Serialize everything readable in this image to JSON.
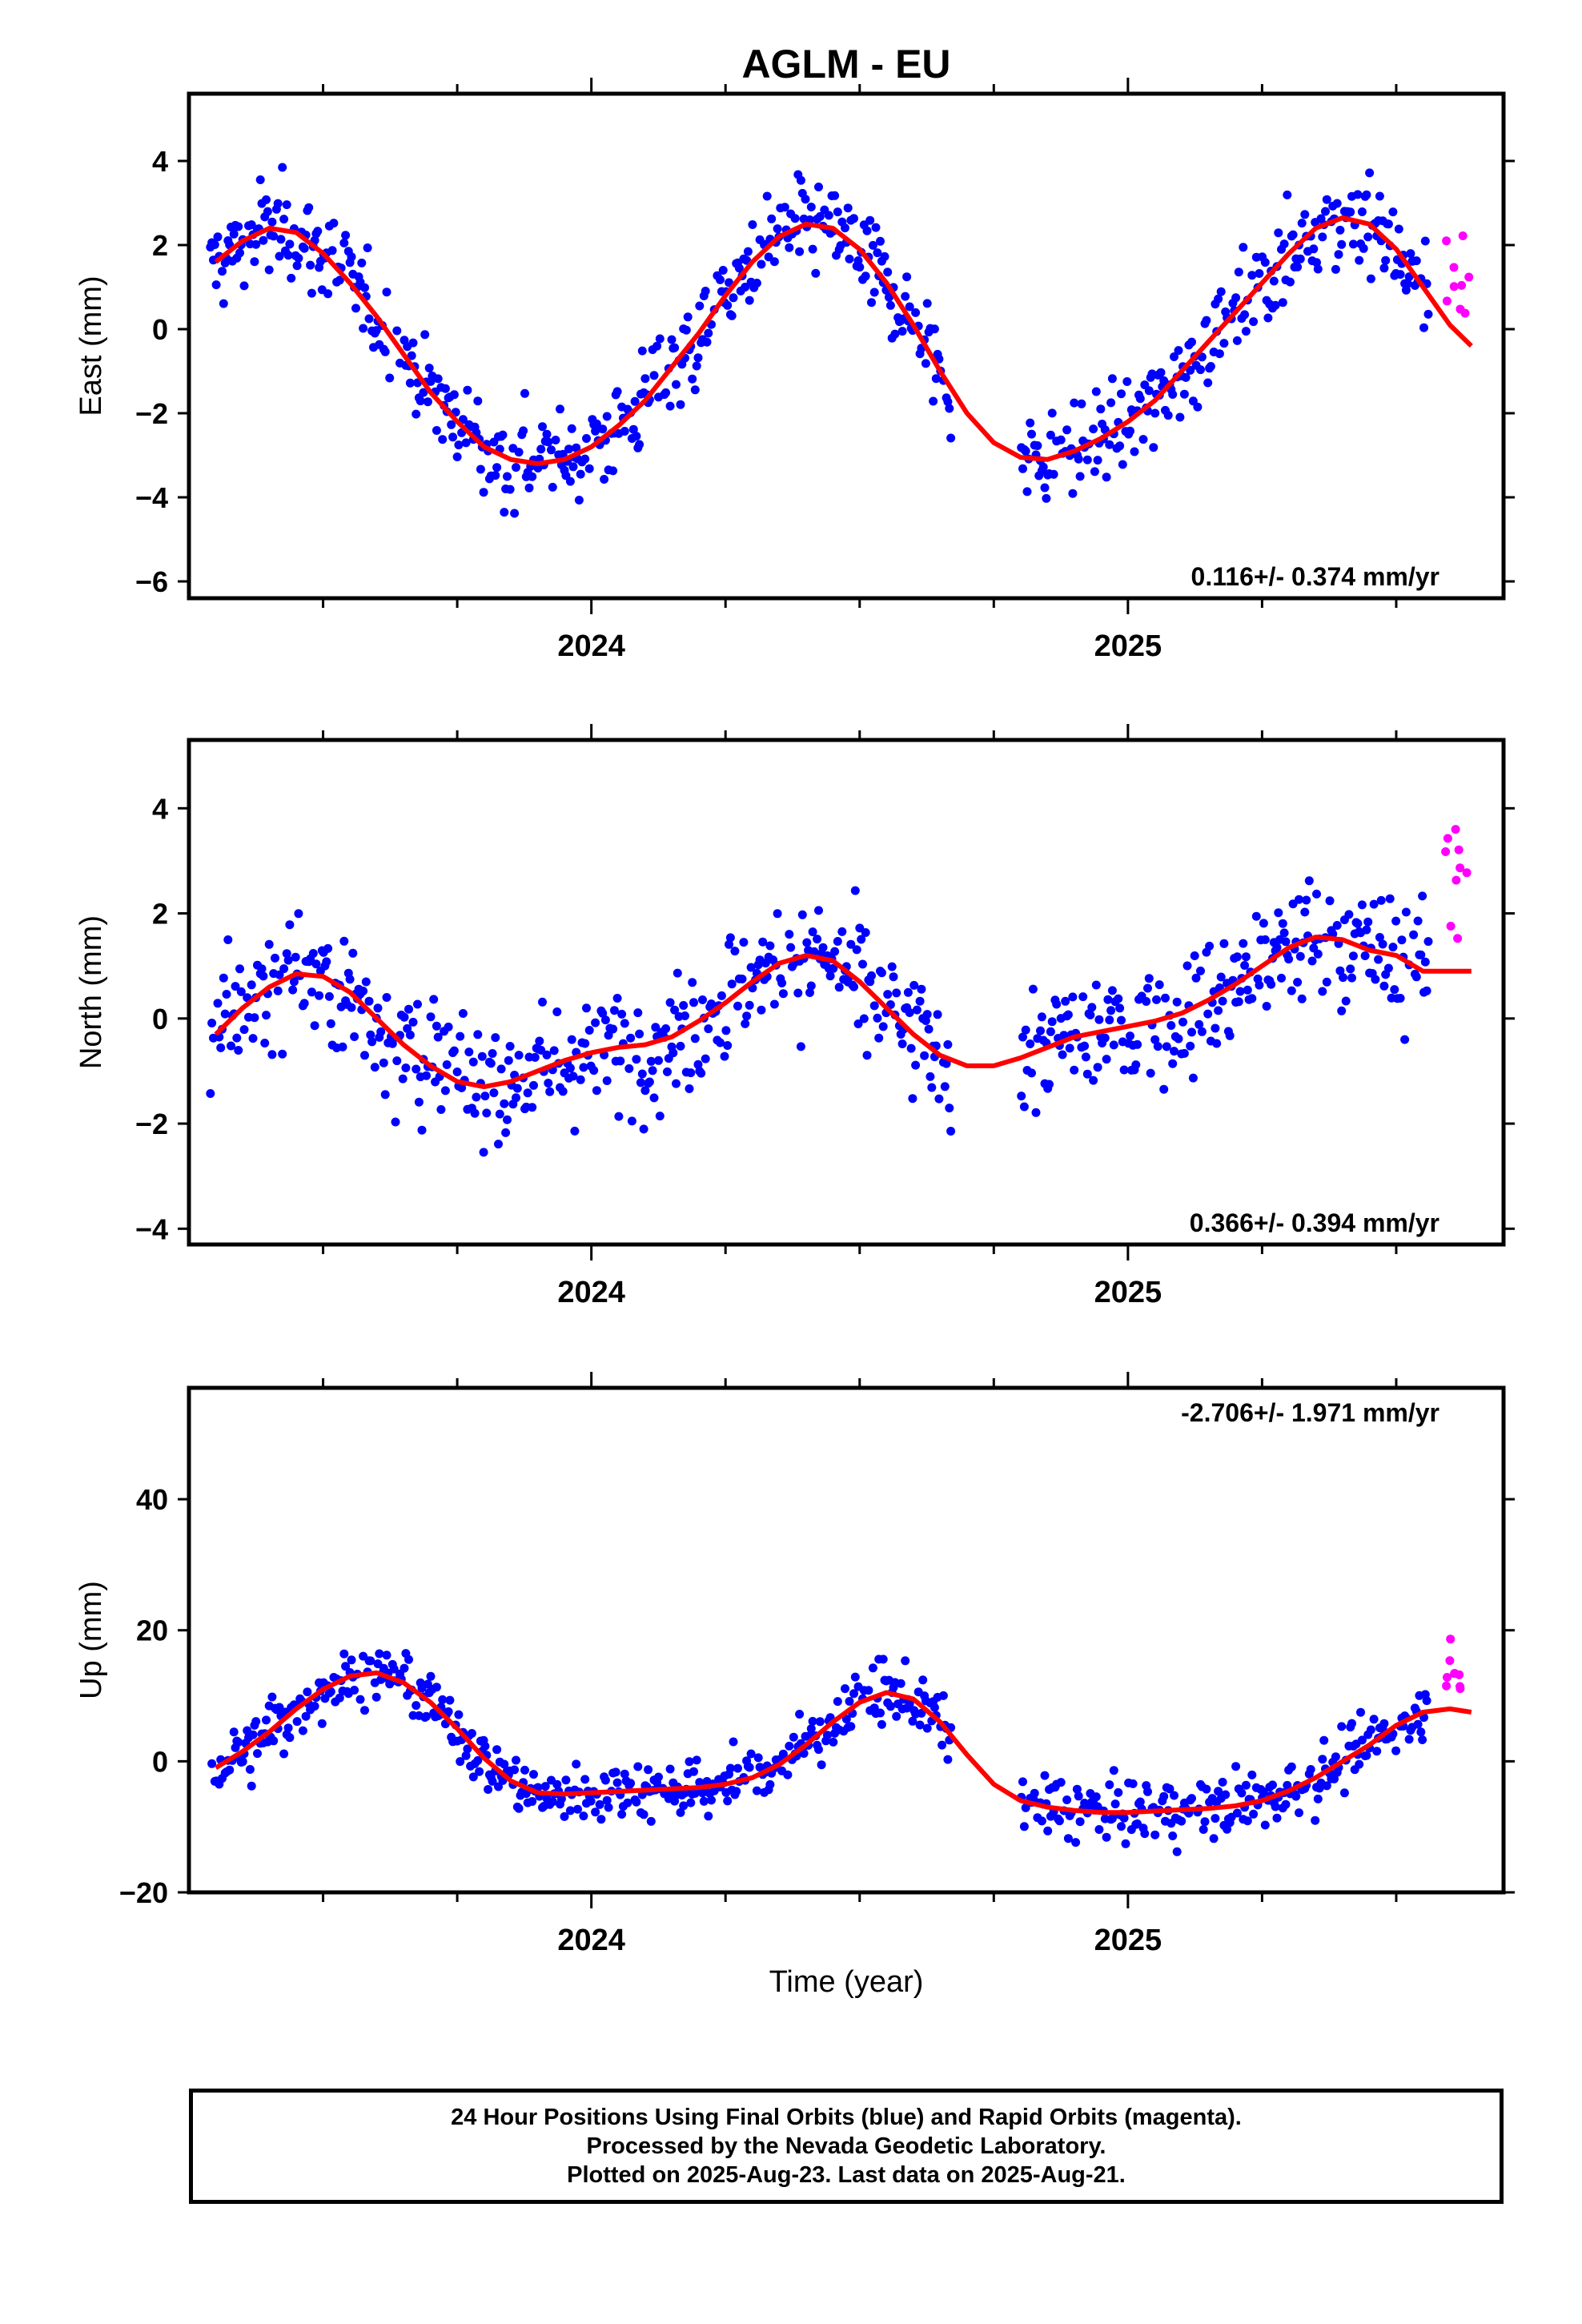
{
  "title": "AGLM - EU",
  "xlabel": "Time (year)",
  "caption": [
    "24 Hour Positions Using Final Orbits (blue) and Rapid Orbits (magenta).",
    "Processed by the Nevada Geodetic Laboratory.",
    "Plotted on 2025-Aug-23. Last data on 2025-Aug-21."
  ],
  "colors": {
    "final": "#0000ff",
    "rapid": "#ff00ff",
    "fit": "#ff0000",
    "axes": "#000000"
  },
  "chart_data": [
    {
      "type": "scatter",
      "panel": "east",
      "ylabel": "East (mm)",
      "rate_label": "0.116+/- 0.374 mm/yr",
      "xlim": [
        2023.25,
        2025.7
      ],
      "ylim": [
        -6.4,
        5.6
      ],
      "yticks": [
        -6,
        -4,
        -2,
        0,
        2,
        4
      ],
      "xticks": [
        "2024",
        "2025"
      ],
      "data_gap": [
        2024.67,
        2024.8
      ],
      "final_range": [
        2023.29,
        2025.56
      ],
      "rapid_range": [
        2025.6,
        2025.63
      ],
      "fit": {
        "x": [
          2023.3,
          2023.35,
          2023.4,
          2023.45,
          2023.5,
          2023.55,
          2023.6,
          2023.65,
          2023.7,
          2023.75,
          2023.8,
          2023.85,
          2023.9,
          2023.95,
          2024.0,
          2024.05,
          2024.1,
          2024.15,
          2024.2,
          2024.25,
          2024.3,
          2024.35,
          2024.4,
          2024.45,
          2024.5,
          2024.55,
          2024.6,
          2024.65,
          2024.7,
          2024.75,
          2024.8,
          2024.85,
          2024.9,
          2024.95,
          2025.0,
          2025.05,
          2025.1,
          2025.15,
          2025.2,
          2025.25,
          2025.3,
          2025.35,
          2025.4,
          2025.45,
          2025.5,
          2025.55,
          2025.6,
          2025.64
        ],
        "y": [
          1.6,
          2.1,
          2.4,
          2.3,
          1.8,
          1.1,
          0.3,
          -0.6,
          -1.5,
          -2.2,
          -2.8,
          -3.1,
          -3.2,
          -3.1,
          -2.8,
          -2.3,
          -1.7,
          -0.9,
          -0.1,
          0.8,
          1.6,
          2.2,
          2.5,
          2.4,
          1.9,
          1.1,
          0.1,
          -1.0,
          -2.0,
          -2.7,
          -3.05,
          -3.1,
          -2.9,
          -2.6,
          -2.2,
          -1.7,
          -1.0,
          -0.3,
          0.4,
          1.1,
          1.8,
          2.4,
          2.65,
          2.5,
          1.9,
          1.0,
          0.1,
          -0.4
        ]
      },
      "scatter_sd": 0.9
    },
    {
      "type": "scatter",
      "panel": "north",
      "ylabel": "North (mm)",
      "rate_label": "0.366+/- 0.394 mm/yr",
      "xlim": [
        2023.25,
        2025.7
      ],
      "ylim": [
        -4.3,
        5.3
      ],
      "yticks": [
        -4,
        -2,
        0,
        2,
        4
      ],
      "xticks": [
        "2024",
        "2025"
      ],
      "data_gap": [
        2024.67,
        2024.8
      ],
      "final_range": [
        2023.29,
        2025.56
      ],
      "rapid_range": [
        2025.6,
        2025.63
      ],
      "fit": {
        "x": [
          2023.3,
          2023.35,
          2023.4,
          2023.45,
          2023.5,
          2023.55,
          2023.6,
          2023.65,
          2023.7,
          2023.75,
          2023.8,
          2023.85,
          2023.9,
          2023.95,
          2024.0,
          2024.05,
          2024.1,
          2024.15,
          2024.2,
          2024.25,
          2024.3,
          2024.35,
          2024.4,
          2024.45,
          2024.5,
          2024.55,
          2024.6,
          2024.65,
          2024.7,
          2024.75,
          2024.8,
          2024.85,
          2024.9,
          2024.95,
          2025.0,
          2025.05,
          2025.1,
          2025.15,
          2025.2,
          2025.25,
          2025.3,
          2025.35,
          2025.4,
          2025.45,
          2025.5,
          2025.55,
          2025.6,
          2025.64
        ],
        "y": [
          -0.3,
          0.2,
          0.6,
          0.85,
          0.8,
          0.5,
          0.0,
          -0.5,
          -0.9,
          -1.2,
          -1.3,
          -1.2,
          -1.0,
          -0.8,
          -0.65,
          -0.55,
          -0.5,
          -0.35,
          -0.05,
          0.3,
          0.7,
          1.05,
          1.2,
          1.1,
          0.7,
          0.2,
          -0.3,
          -0.7,
          -0.9,
          -0.9,
          -0.75,
          -0.55,
          -0.35,
          -0.25,
          -0.15,
          -0.05,
          0.1,
          0.35,
          0.65,
          1.0,
          1.35,
          1.55,
          1.5,
          1.3,
          1.2,
          0.9,
          0.9,
          0.9
        ]
      },
      "scatter_sd": 1.0
    },
    {
      "type": "scatter",
      "panel": "up",
      "ylabel": "Up (mm)",
      "rate_label": "-2.706+/- 1.971 mm/yr",
      "xlim": [
        2023.25,
        2025.7
      ],
      "ylim": [
        -20,
        57
      ],
      "yticks": [
        -20,
        0,
        20,
        40
      ],
      "xticks": [
        "2024",
        "2025"
      ],
      "data_gap": [
        2024.67,
        2024.8
      ],
      "final_range": [
        2023.29,
        2025.56
      ],
      "rapid_range": [
        2025.6,
        2025.63
      ],
      "fit": {
        "x": [
          2023.3,
          2023.35,
          2023.4,
          2023.45,
          2023.5,
          2023.55,
          2023.6,
          2023.65,
          2023.7,
          2023.75,
          2023.8,
          2023.85,
          2023.9,
          2023.95,
          2024.0,
          2024.05,
          2024.1,
          2024.15,
          2024.2,
          2024.25,
          2024.3,
          2024.35,
          2024.4,
          2024.45,
          2024.5,
          2024.55,
          2024.6,
          2024.65,
          2024.7,
          2024.75,
          2024.8,
          2024.85,
          2024.9,
          2024.95,
          2025.0,
          2025.05,
          2025.1,
          2025.15,
          2025.2,
          2025.25,
          2025.3,
          2025.35,
          2025.4,
          2025.45,
          2025.5,
          2025.55,
          2025.6,
          2025.64
        ],
        "y": [
          -1,
          1.5,
          4.5,
          8,
          11,
          13,
          13.5,
          12,
          9,
          5,
          0.5,
          -3,
          -4.8,
          -5,
          -4.8,
          -4.6,
          -4.4,
          -4.2,
          -4.0,
          -3.5,
          -2.5,
          -0.5,
          2.5,
          6,
          9,
          10.5,
          9.5,
          6,
          1,
          -3.5,
          -6,
          -7,
          -7.5,
          -7.8,
          -7.8,
          -7.6,
          -7.4,
          -7.2,
          -6.8,
          -6,
          -4.5,
          -2.5,
          0,
          2.5,
          5.5,
          7.5,
          8,
          7.5
        ]
      },
      "scatter_sd": 4.0
    }
  ]
}
